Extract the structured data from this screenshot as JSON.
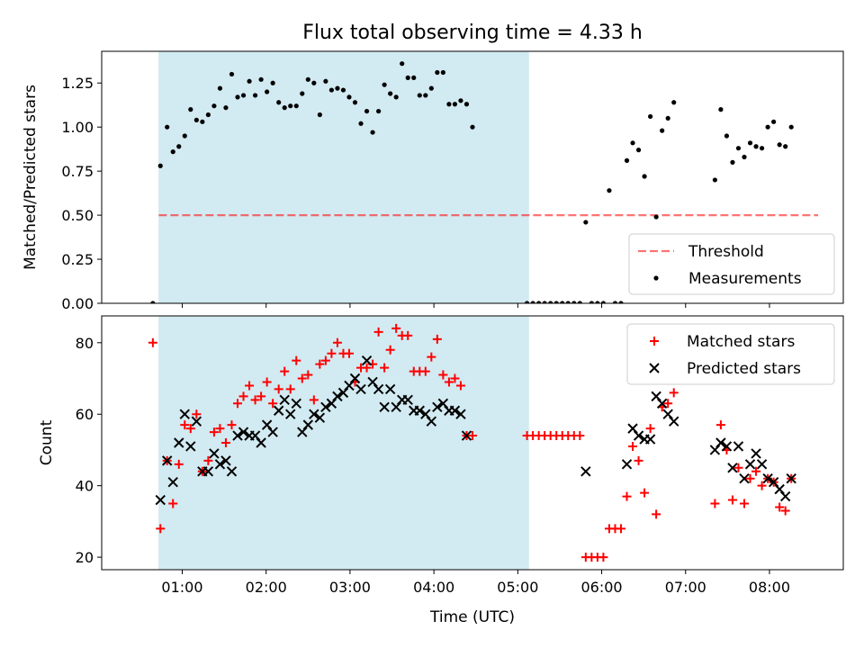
{
  "figure": {
    "title": "Flux total observing time = 4.33 h",
    "xlabel": "Time (UTC)",
    "x_ticks": [
      "01:00",
      "02:00",
      "03:00",
      "04:00",
      "05:00",
      "06:00",
      "07:00",
      "08:00"
    ]
  },
  "colors": {
    "shade": "#add8e6",
    "threshold": "#ff0000",
    "measurement": "#000000",
    "matched": "#ff0000",
    "predicted": "#000000"
  },
  "chart_data": [
    {
      "type": "scatter",
      "ylabel": "Matched/Predicted stars",
      "x_units": "hours since 00:00 UTC",
      "xlim": [
        0.04,
        8.88
      ],
      "ylim": [
        0.0,
        1.43
      ],
      "y_ticks": [
        "0.00",
        "0.25",
        "0.50",
        "0.75",
        "1.00",
        "1.25"
      ],
      "shaded_interval": [
        "00:43",
        "05:08"
      ],
      "legend": [
        "Threshold",
        "Measurements"
      ],
      "legend_position": "lower right",
      "threshold": {
        "name": "Threshold",
        "y": 0.5,
        "x_range": [
          0.72,
          8.58
        ]
      },
      "series": [
        {
          "name": "Measurements",
          "points": [
            [
              0.65,
              0.0
            ],
            [
              0.74,
              0.78
            ],
            [
              0.82,
              1.0
            ],
            [
              0.89,
              0.86
            ],
            [
              0.96,
              0.89
            ],
            [
              1.03,
              0.95
            ],
            [
              1.1,
              1.1
            ],
            [
              1.17,
              1.04
            ],
            [
              1.24,
              1.03
            ],
            [
              1.31,
              1.07
            ],
            [
              1.38,
              1.12
            ],
            [
              1.45,
              1.22
            ],
            [
              1.52,
              1.11
            ],
            [
              1.59,
              1.3
            ],
            [
              1.66,
              1.17
            ],
            [
              1.73,
              1.18
            ],
            [
              1.8,
              1.26
            ],
            [
              1.87,
              1.18
            ],
            [
              1.94,
              1.27
            ],
            [
              2.01,
              1.2
            ],
            [
              2.08,
              1.25
            ],
            [
              2.15,
              1.14
            ],
            [
              2.22,
              1.11
            ],
            [
              2.29,
              1.12
            ],
            [
              2.36,
              1.12
            ],
            [
              2.43,
              1.19
            ],
            [
              2.5,
              1.27
            ],
            [
              2.57,
              1.25
            ],
            [
              2.64,
              1.07
            ],
            [
              2.71,
              1.26
            ],
            [
              2.78,
              1.21
            ],
            [
              2.85,
              1.22
            ],
            [
              2.92,
              1.21
            ],
            [
              2.99,
              1.17
            ],
            [
              3.06,
              1.14
            ],
            [
              3.13,
              1.02
            ],
            [
              3.2,
              1.09
            ],
            [
              3.27,
              0.97
            ],
            [
              3.34,
              1.09
            ],
            [
              3.41,
              1.24
            ],
            [
              3.48,
              1.19
            ],
            [
              3.55,
              1.17
            ],
            [
              3.62,
              1.36
            ],
            [
              3.69,
              1.28
            ],
            [
              3.76,
              1.28
            ],
            [
              3.83,
              1.18
            ],
            [
              3.9,
              1.18
            ],
            [
              3.97,
              1.22
            ],
            [
              4.04,
              1.31
            ],
            [
              4.11,
              1.31
            ],
            [
              4.18,
              1.13
            ],
            [
              4.25,
              1.13
            ],
            [
              4.32,
              1.15
            ],
            [
              4.39,
              1.13
            ],
            [
              4.46,
              1.0
            ],
            [
              5.11,
              0.0
            ],
            [
              5.18,
              0.0
            ],
            [
              5.25,
              0.0
            ],
            [
              5.32,
              0.0
            ],
            [
              5.39,
              0.0
            ],
            [
              5.46,
              0.0
            ],
            [
              5.53,
              0.0
            ],
            [
              5.6,
              0.0
            ],
            [
              5.67,
              0.0
            ],
            [
              5.74,
              0.0
            ],
            [
              5.81,
              0.46
            ],
            [
              5.88,
              0.0
            ],
            [
              5.95,
              0.0
            ],
            [
              6.02,
              0.0
            ],
            [
              6.09,
              0.64
            ],
            [
              6.16,
              0.0
            ],
            [
              6.23,
              0.0
            ],
            [
              6.3,
              0.81
            ],
            [
              6.37,
              0.91
            ],
            [
              6.44,
              0.87
            ],
            [
              6.51,
              0.72
            ],
            [
              6.58,
              1.06
            ],
            [
              6.65,
              0.49
            ],
            [
              6.72,
              0.98
            ],
            [
              6.79,
              1.05
            ],
            [
              6.86,
              1.14
            ],
            [
              7.35,
              0.7
            ],
            [
              7.42,
              1.1
            ],
            [
              7.49,
              0.95
            ],
            [
              7.56,
              0.8
            ],
            [
              7.63,
              0.88
            ],
            [
              7.7,
              0.83
            ],
            [
              7.77,
              0.91
            ],
            [
              7.84,
              0.89
            ],
            [
              7.91,
              0.88
            ],
            [
              7.98,
              1.0
            ],
            [
              8.05,
              1.03
            ],
            [
              8.12,
              0.9
            ],
            [
              8.19,
              0.89
            ],
            [
              8.26,
              1.0
            ]
          ]
        }
      ]
    },
    {
      "type": "scatter",
      "ylabel": "Count",
      "x_units": "hours since 00:00 UTC",
      "xlim": [
        0.04,
        8.88
      ],
      "ylim": [
        16.5,
        87.5
      ],
      "y_ticks": [
        "20",
        "40",
        "60",
        "80"
      ],
      "shaded_interval": [
        "00:43",
        "05:08"
      ],
      "legend": [
        "Matched stars",
        "Predicted stars"
      ],
      "legend_position": "upper right",
      "series": [
        {
          "name": "Matched stars",
          "marker": "plus",
          "points": [
            [
              0.65,
              80
            ],
            [
              0.74,
              28
            ],
            [
              0.82,
              47
            ],
            [
              0.89,
              35
            ],
            [
              0.96,
              46
            ],
            [
              1.03,
              57
            ],
            [
              1.1,
              56
            ],
            [
              1.17,
              60
            ],
            [
              1.24,
              44
            ],
            [
              1.31,
              47
            ],
            [
              1.38,
              55
            ],
            [
              1.45,
              56
            ],
            [
              1.52,
              52
            ],
            [
              1.59,
              57
            ],
            [
              1.66,
              63
            ],
            [
              1.73,
              65
            ],
            [
              1.8,
              68
            ],
            [
              1.87,
              64
            ],
            [
              1.94,
              65
            ],
            [
              2.01,
              69
            ],
            [
              2.08,
              63
            ],
            [
              2.15,
              67
            ],
            [
              2.22,
              72
            ],
            [
              2.29,
              67
            ],
            [
              2.36,
              75
            ],
            [
              2.43,
              70
            ],
            [
              2.5,
              71
            ],
            [
              2.57,
              64
            ],
            [
              2.64,
              74
            ],
            [
              2.71,
              75
            ],
            [
              2.78,
              77
            ],
            [
              2.85,
              80
            ],
            [
              2.92,
              77
            ],
            [
              2.99,
              77
            ],
            [
              3.06,
              69
            ],
            [
              3.13,
              73
            ],
            [
              3.2,
              73
            ],
            [
              3.27,
              74
            ],
            [
              3.34,
              83
            ],
            [
              3.41,
              73
            ],
            [
              3.48,
              78
            ],
            [
              3.55,
              84
            ],
            [
              3.62,
              82
            ],
            [
              3.69,
              82
            ],
            [
              3.76,
              72
            ],
            [
              3.83,
              72
            ],
            [
              3.9,
              72
            ],
            [
              3.97,
              76
            ],
            [
              4.04,
              81
            ],
            [
              4.11,
              71
            ],
            [
              4.18,
              69
            ],
            [
              4.25,
              70
            ],
            [
              4.32,
              68
            ],
            [
              4.39,
              54
            ],
            [
              4.46,
              54
            ],
            [
              5.11,
              54
            ],
            [
              5.18,
              54
            ],
            [
              5.25,
              54
            ],
            [
              5.32,
              54
            ],
            [
              5.39,
              54
            ],
            [
              5.46,
              54
            ],
            [
              5.53,
              54
            ],
            [
              5.6,
              54
            ],
            [
              5.67,
              54
            ],
            [
              5.74,
              54
            ],
            [
              5.81,
              20
            ],
            [
              5.88,
              20
            ],
            [
              5.95,
              20
            ],
            [
              6.02,
              20
            ],
            [
              6.09,
              28
            ],
            [
              6.16,
              28
            ],
            [
              6.23,
              28
            ],
            [
              6.3,
              37
            ],
            [
              6.37,
              51
            ],
            [
              6.44,
              47
            ],
            [
              6.51,
              38
            ],
            [
              6.58,
              56
            ],
            [
              6.65,
              32
            ],
            [
              6.72,
              62
            ],
            [
              6.79,
              63
            ],
            [
              6.86,
              66
            ],
            [
              7.35,
              35
            ],
            [
              7.42,
              57
            ],
            [
              7.49,
              50
            ],
            [
              7.56,
              36
            ],
            [
              7.63,
              45
            ],
            [
              7.7,
              35
            ],
            [
              7.77,
              42
            ],
            [
              7.84,
              44
            ],
            [
              7.91,
              40
            ],
            [
              7.98,
              42
            ],
            [
              8.05,
              41
            ],
            [
              8.12,
              34
            ],
            [
              8.19,
              33
            ],
            [
              8.26,
              42
            ]
          ]
        },
        {
          "name": "Predicted stars",
          "marker": "x",
          "points": [
            [
              0.74,
              36
            ],
            [
              0.82,
              47
            ],
            [
              0.89,
              41
            ],
            [
              0.96,
              52
            ],
            [
              1.03,
              60
            ],
            [
              1.1,
              51
            ],
            [
              1.17,
              58
            ],
            [
              1.24,
              44
            ],
            [
              1.31,
              44
            ],
            [
              1.38,
              49
            ],
            [
              1.45,
              46
            ],
            [
              1.52,
              47
            ],
            [
              1.59,
              44
            ],
            [
              1.66,
              54
            ],
            [
              1.73,
              55
            ],
            [
              1.8,
              54
            ],
            [
              1.87,
              54
            ],
            [
              1.94,
              52
            ],
            [
              2.01,
              57
            ],
            [
              2.08,
              55
            ],
            [
              2.15,
              61
            ],
            [
              2.22,
              64
            ],
            [
              2.29,
              60
            ],
            [
              2.36,
              63
            ],
            [
              2.43,
              55
            ],
            [
              2.5,
              57
            ],
            [
              2.57,
              60
            ],
            [
              2.64,
              59
            ],
            [
              2.71,
              62
            ],
            [
              2.78,
              63
            ],
            [
              2.85,
              65
            ],
            [
              2.92,
              66
            ],
            [
              2.99,
              68
            ],
            [
              3.06,
              70
            ],
            [
              3.13,
              67
            ],
            [
              3.2,
              75
            ],
            [
              3.27,
              69
            ],
            [
              3.34,
              67
            ],
            [
              3.41,
              62
            ],
            [
              3.48,
              67
            ],
            [
              3.55,
              62
            ],
            [
              3.62,
              64
            ],
            [
              3.69,
              64
            ],
            [
              3.76,
              61
            ],
            [
              3.83,
              61
            ],
            [
              3.9,
              60
            ],
            [
              3.97,
              58
            ],
            [
              4.04,
              62
            ],
            [
              4.11,
              63
            ],
            [
              4.18,
              61
            ],
            [
              4.25,
              61
            ],
            [
              4.32,
              60
            ],
            [
              4.39,
              54
            ],
            [
              5.81,
              44
            ],
            [
              6.3,
              46
            ],
            [
              6.37,
              56
            ],
            [
              6.44,
              54
            ],
            [
              6.51,
              53
            ],
            [
              6.58,
              53
            ],
            [
              6.65,
              65
            ],
            [
              6.72,
              63
            ],
            [
              6.79,
              60
            ],
            [
              6.86,
              58
            ],
            [
              7.35,
              50
            ],
            [
              7.42,
              52
            ],
            [
              7.49,
              51
            ],
            [
              7.56,
              45
            ],
            [
              7.63,
              51
            ],
            [
              7.7,
              42
            ],
            [
              7.77,
              46
            ],
            [
              7.84,
              49
            ],
            [
              7.91,
              46
            ],
            [
              7.98,
              42
            ],
            [
              8.05,
              41
            ],
            [
              8.12,
              39
            ],
            [
              8.19,
              37
            ],
            [
              8.26,
              42
            ]
          ]
        }
      ]
    }
  ]
}
